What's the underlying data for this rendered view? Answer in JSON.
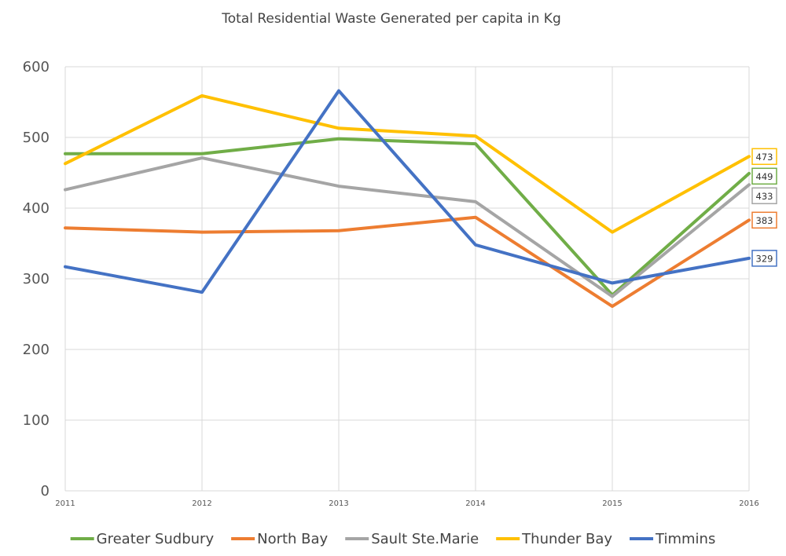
{
  "chart_data": {
    "type": "line",
    "title": "Total Residential Waste Generated per capita in Kg",
    "xlabel": "",
    "ylabel": "",
    "x": [
      "2011",
      "2012",
      "2013",
      "2014",
      "2015",
      "2016"
    ],
    "ylim": [
      0,
      600
    ],
    "yticks": [
      "0",
      "100",
      "200",
      "300",
      "400",
      "500",
      "600"
    ],
    "grid": true,
    "legend_position": "bottom",
    "series": [
      {
        "name": "Greater Sudbury",
        "color": "#70ad47",
        "values": [
          477,
          477,
          498,
          491,
          277,
          449
        ],
        "end_label": "449"
      },
      {
        "name": "North Bay",
        "color": "#ed7d31",
        "values": [
          372,
          366,
          368,
          387,
          261,
          383
        ],
        "end_label": "383"
      },
      {
        "name": "Sault Ste.Marie",
        "color": "#a5a5a5",
        "values": [
          426,
          471,
          431,
          409,
          275,
          433
        ],
        "end_label": "433"
      },
      {
        "name": "Thunder Bay",
        "color": "#ffc000",
        "values": [
          463,
          559,
          513,
          502,
          366,
          473
        ],
        "end_label": "473"
      },
      {
        "name": "Timmins",
        "color": "#4472c4",
        "values": [
          317,
          281,
          566,
          348,
          294,
          329
        ],
        "end_label": "329"
      }
    ]
  }
}
